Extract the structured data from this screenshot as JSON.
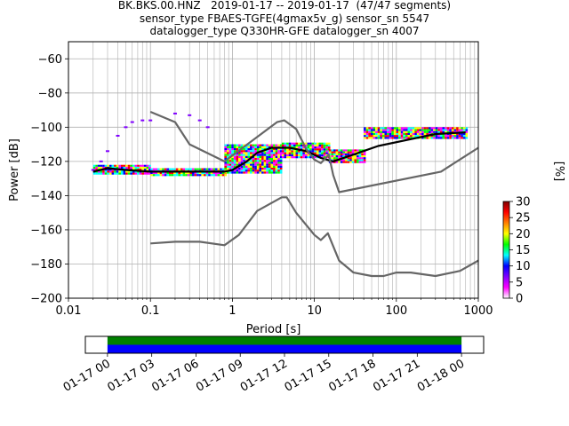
{
  "title_lines": [
    "BK.BKS.00.HNZ   2019-01-17 -- 2019-01-17  (47/47 segments)",
    "sensor_type FBAES-TGFE(4gmax5v_g) sensor_sn 5547",
    "datalogger_type Q330HR-GFE datalogger_sn 4007"
  ],
  "chart_data": [
    {
      "type": "heatmap",
      "subtype": "probabilistic power spectral density",
      "xlabel": "Period [s]",
      "ylabel": "Power [dB]",
      "x_scale": "log",
      "xlim": [
        0.01,
        1000
      ],
      "ylim": [
        -200,
        -50
      ],
      "x_ticks": [
        0.01,
        0.1,
        1,
        10,
        100,
        1000
      ],
      "x_tick_labels": [
        "0.01",
        "0.1",
        "1",
        "10",
        "100",
        "1000"
      ],
      "y_ticks": [
        -200,
        -180,
        -160,
        -140,
        -120,
        -100,
        -80,
        -60
      ],
      "y_tick_labels": [
        "−200",
        "−180",
        "−160",
        "−140",
        "−120",
        "−100",
        "−80",
        "−60"
      ],
      "grid": true,
      "colorbar": {
        "label": "[%]",
        "range": [
          0,
          30
        ],
        "ticks": [
          0,
          5,
          10,
          15,
          20,
          25,
          30
        ],
        "tick_labels": [
          "0",
          "5",
          "10",
          "15",
          "20",
          "25",
          "30"
        ],
        "colors": [
          "#ffffff",
          "#ff00ff",
          "#8000ff",
          "#0000ff",
          "#00ffff",
          "#00ff00",
          "#ffff00",
          "#ff8000",
          "#ff0000",
          "#800000"
        ]
      },
      "density_colors": [
        "#ff00ff",
        "#0000ff",
        "#00ffff",
        "#00ff00",
        "#ffff00",
        "#ff0000"
      ],
      "density_bands": [
        {
          "period": [
            0.02,
            0.1
          ],
          "db_low": -127,
          "db_high": -122
        },
        {
          "period": [
            0.1,
            0.8
          ],
          "db_low": -128,
          "db_high": -124
        },
        {
          "period": [
            0.8,
            4
          ],
          "db_low": -126,
          "db_high": -110
        },
        {
          "period": [
            4,
            15
          ],
          "db_low": -118,
          "db_high": -109
        },
        {
          "period": [
            15,
            40
          ],
          "db_low": -120,
          "db_high": -113
        },
        {
          "period": [
            40,
            700
          ],
          "db_low": -106,
          "db_high": -100
        }
      ],
      "density_outliers": [
        {
          "period": 0.02,
          "db": -125
        },
        {
          "period": 0.025,
          "db": -120
        },
        {
          "period": 0.03,
          "db": -114
        },
        {
          "period": 0.04,
          "db": -105
        },
        {
          "period": 0.05,
          "db": -100
        },
        {
          "period": 0.06,
          "db": -97
        },
        {
          "period": 0.08,
          "db": -96
        },
        {
          "period": 0.1,
          "db": -96
        },
        {
          "period": 0.2,
          "db": -92
        },
        {
          "period": 0.3,
          "db": -93
        },
        {
          "period": 0.4,
          "db": -96
        },
        {
          "period": 0.5,
          "db": -100
        }
      ],
      "series": [
        {
          "color": "#000000",
          "points": [
            [
              0.02,
              -126
            ],
            [
              0.03,
              -124
            ],
            [
              0.05,
              -125
            ],
            [
              0.1,
              -126
            ],
            [
              0.2,
              -126
            ],
            [
              0.5,
              -126
            ],
            [
              0.8,
              -126
            ],
            [
              1,
              -125
            ],
            [
              1.5,
              -120
            ],
            [
              2,
              -115
            ],
            [
              3,
              -112
            ],
            [
              5,
              -112
            ],
            [
              8,
              -114
            ],
            [
              12,
              -118
            ],
            [
              17,
              -120
            ],
            [
              30,
              -116
            ],
            [
              60,
              -111
            ],
            [
              150,
              -107
            ],
            [
              300,
              -104
            ],
            [
              700,
              -103
            ]
          ]
        },
        {
          "color": "#666666",
          "points": [
            [
              0.1,
              -91
            ],
            [
              0.2,
              -97
            ],
            [
              0.3,
              -110
            ],
            [
              0.8,
              -120
            ],
            [
              3.5,
              -97
            ],
            [
              4.3,
              -96
            ],
            [
              6,
              -101
            ],
            [
              8,
              -113
            ],
            [
              10,
              -119
            ],
            [
              12,
              -121
            ],
            [
              15,
              -116
            ],
            [
              17,
              -128
            ],
            [
              20,
              -138
            ],
            [
              350,
              -126
            ],
            [
              1000,
              -112
            ]
          ]
        },
        {
          "color": "#666666",
          "points": [
            [
              0.1,
              -168
            ],
            [
              0.2,
              -167
            ],
            [
              0.4,
              -167
            ],
            [
              0.8,
              -169
            ],
            [
              1.2,
              -163
            ],
            [
              2,
              -149
            ],
            [
              4,
              -141
            ],
            [
              4.6,
              -141
            ],
            [
              6,
              -150
            ],
            [
              10,
              -163
            ],
            [
              12,
              -166
            ],
            [
              14.6,
              -162
            ],
            [
              20,
              -178
            ],
            [
              30,
              -185
            ],
            [
              50,
              -187
            ],
            [
              70,
              -187
            ],
            [
              100,
              -185
            ],
            [
              150,
              -185
            ],
            [
              300,
              -187
            ],
            [
              600,
              -184
            ],
            [
              1000,
              -178
            ]
          ]
        }
      ]
    },
    {
      "type": "bar",
      "subtype": "data availability timeline",
      "x_tick_labels": [
        "01-17 00",
        "01-17 03",
        "01-17 06",
        "01-17 09",
        "01-17 12",
        "01-17 15",
        "01-17 18",
        "01-17 21",
        "01-18 00"
      ],
      "x_range_hours": [
        -1.5,
        25.5
      ],
      "series": [
        {
          "color": "#008000",
          "hours": [
            0,
            24
          ]
        },
        {
          "color": "#0000ff",
          "hours": [
            0,
            24
          ]
        }
      ]
    }
  ]
}
